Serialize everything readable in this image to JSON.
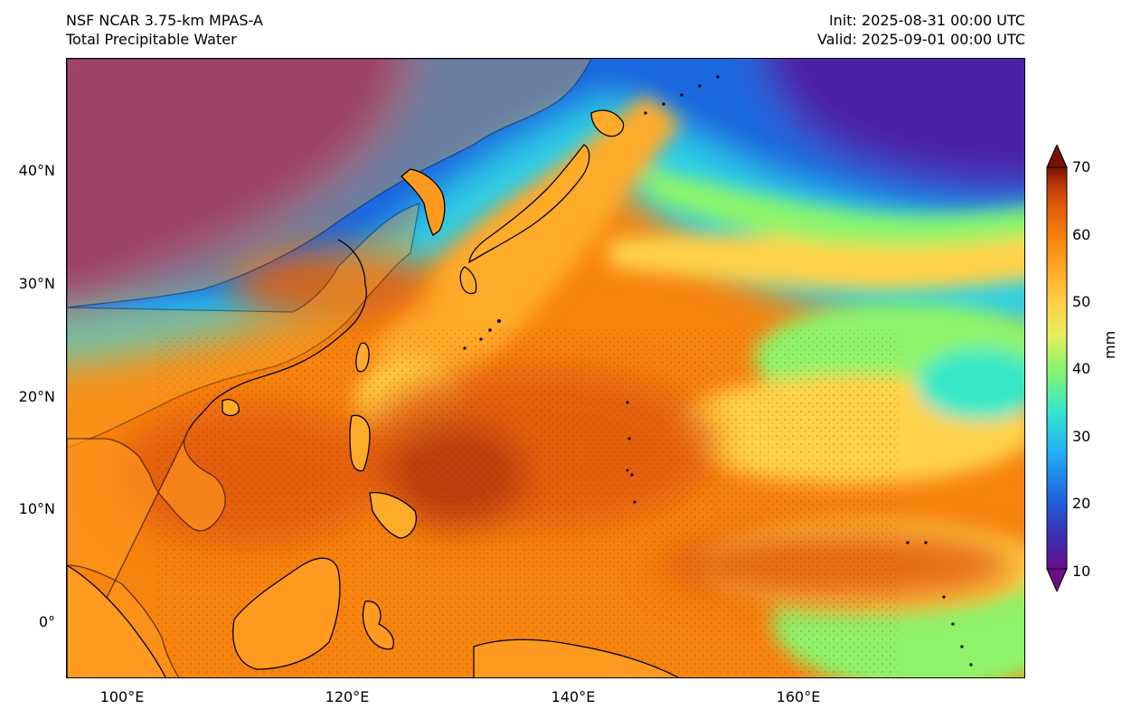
{
  "header": {
    "left_line1": "NSF NCAR 3.75-km MPAS-A",
    "left_line2": "Total Precipitable Water",
    "right_line1": "Init: 2025-08-31 00:00 UTC",
    "right_line2": "Valid: 2025-09-01 00:00 UTC"
  },
  "map": {
    "projection": "PlateCarree",
    "lon_range": [
      95,
      180
    ],
    "lat_range": [
      -5,
      50
    ],
    "lat_ticks": [
      "40°N",
      "30°N",
      "20°N",
      "10°N",
      "0°"
    ],
    "lon_ticks": [
      "100°E",
      "120°E",
      "140°E",
      "160°E"
    ],
    "coastline_color": "#000000"
  },
  "colorbar": {
    "label": "mm",
    "ticks": [
      "70",
      "60",
      "50",
      "40",
      "30",
      "20",
      "10"
    ],
    "min": 10,
    "max": 70,
    "extend": "both",
    "colors": [
      "#6a0f8a",
      "#3b2fb0",
      "#1f66e0",
      "#23b6f5",
      "#39e8c6",
      "#8df46a",
      "#e4f05c",
      "#ffd24a",
      "#ffab2a",
      "#f7840f",
      "#e35d0b",
      "#b8340a",
      "#7a1106"
    ]
  }
}
